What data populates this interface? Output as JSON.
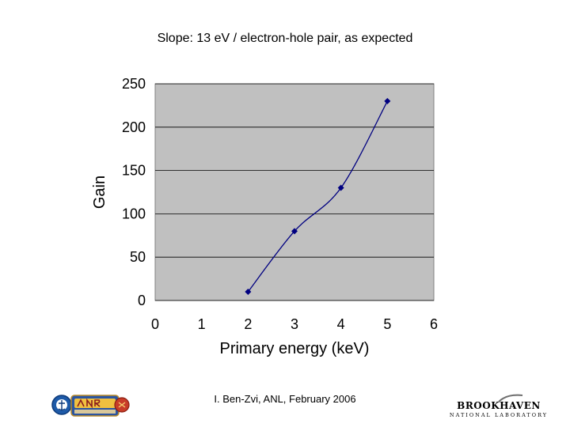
{
  "slide": {
    "title": "Slope: 13 eV / electron-hole pair, as expected",
    "footer": "I. Ben-Zvi, ANL, February 2006"
  },
  "logos": {
    "left": "onr-logo",
    "right_name": "BROOKHAVEN",
    "right_sub": "NATIONAL LABORATORY"
  },
  "chart_data": {
    "type": "line",
    "x": [
      2,
      3,
      4,
      5
    ],
    "series": [
      {
        "values": [
          10,
          80,
          130,
          230
        ],
        "color": "#000080",
        "marker": "diamond"
      }
    ],
    "xlabel": "Primary energy (keV)",
    "ylabel": "Gain",
    "xlim": [
      0,
      6
    ],
    "ylim": [
      0,
      250
    ],
    "xticks": [
      0,
      1,
      2,
      3,
      4,
      5,
      6
    ],
    "yticks": [
      0,
      50,
      100,
      150,
      200,
      250
    ],
    "grid": "horizontal",
    "legend": "none",
    "plot_background": "#c0c0c0",
    "gridline_color": "#000000"
  }
}
